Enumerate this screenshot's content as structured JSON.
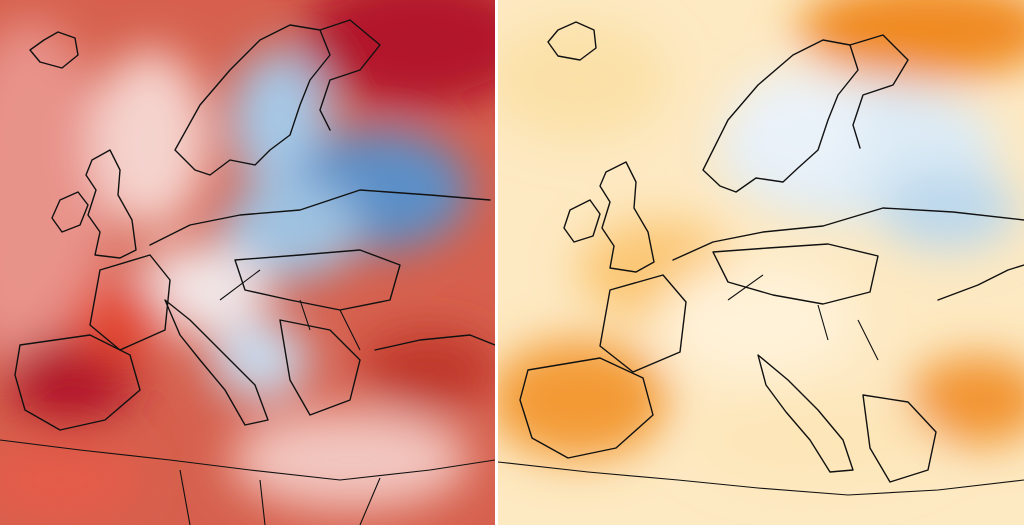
{
  "panels": [
    {
      "id": "left",
      "palette": {
        "hot": "#b2182b",
        "warm": "#e34a33",
        "mild": "#f4a582",
        "neutral": "#f7f0ee",
        "cool": "#92c5de",
        "cold": "#2166ac"
      }
    },
    {
      "id": "right",
      "palette": {
        "hot": "#e66101",
        "warm": "#f9a33b",
        "mild": "#fdd794",
        "neutral": "#fff8e6",
        "cool": "#d1e5f0",
        "cold": "#92c5de"
      }
    }
  ]
}
